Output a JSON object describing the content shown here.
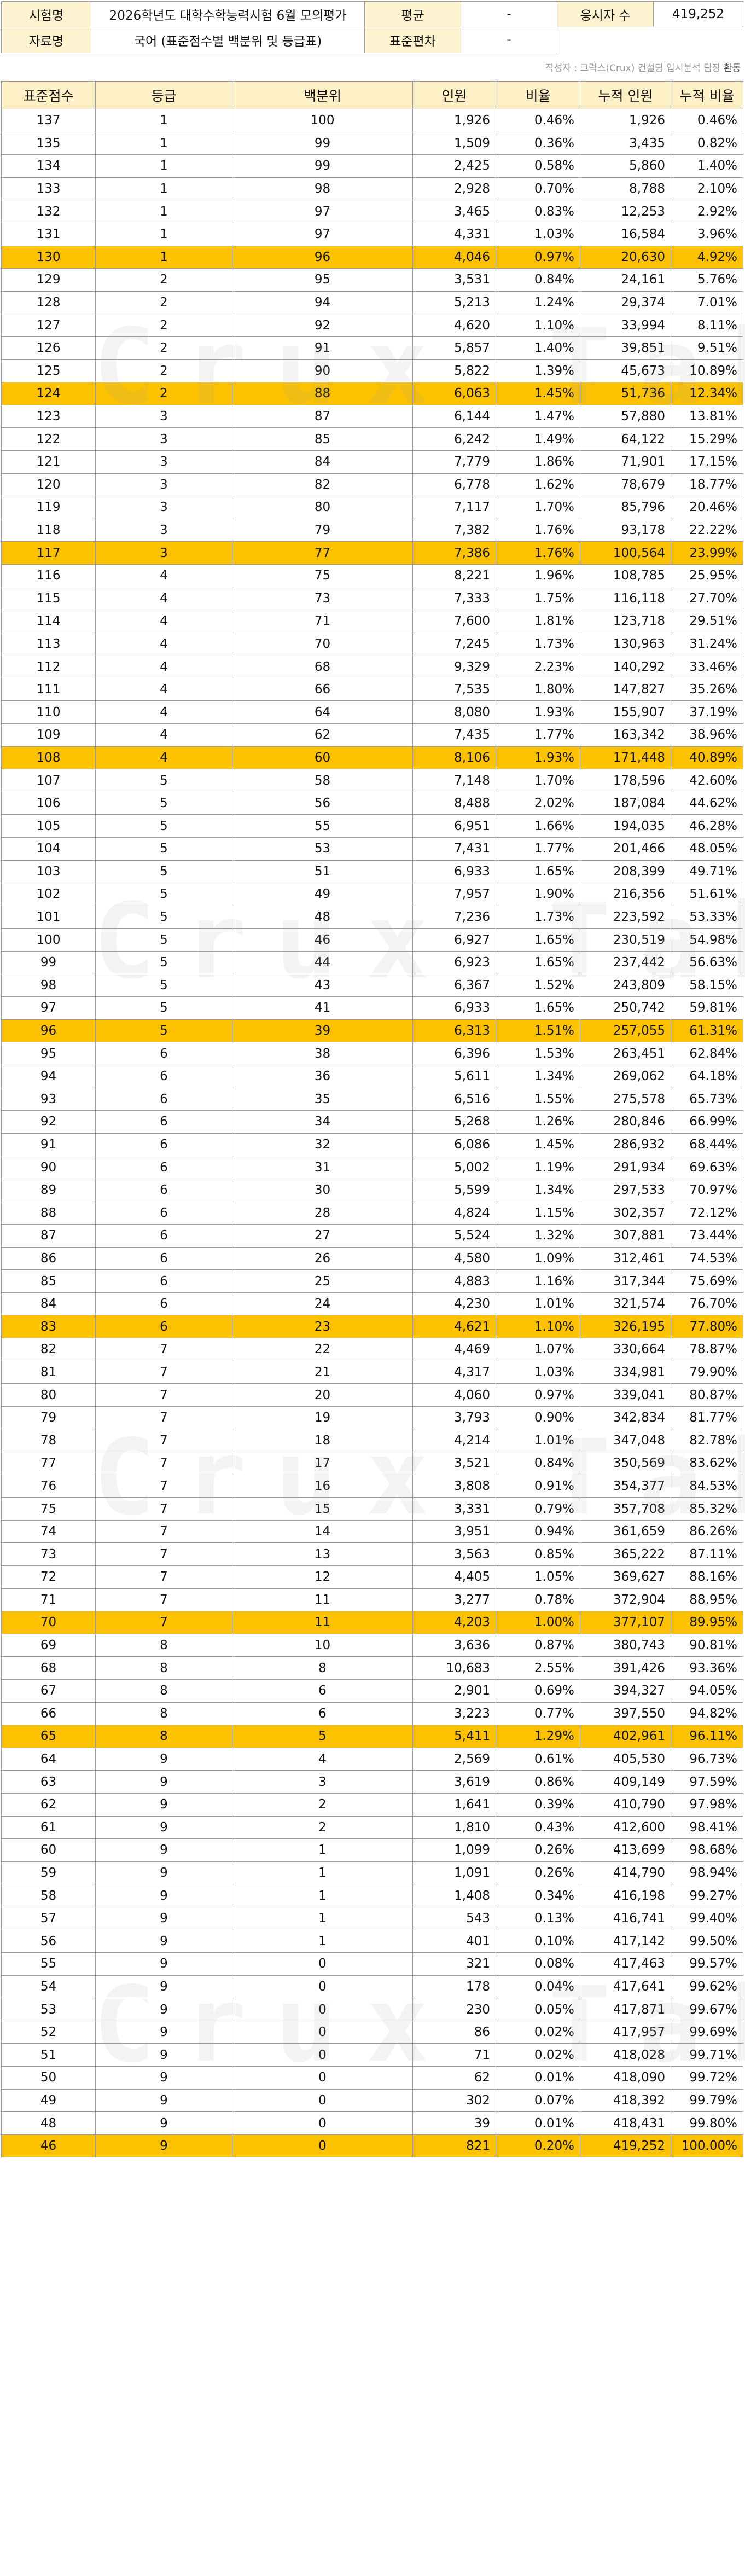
{
  "info": {
    "exam_type_label": "시험명",
    "exam_type_value": "2026학년도 대학수학능력시험 6월 모의평가",
    "data_label": "자료명",
    "data_value": "국어 (표준점수별 백분위 및 등급표)",
    "avg_label": "평균",
    "avg_value": "-",
    "std_label": "표준편차",
    "std_value": "-",
    "examinees_label": "응시자 수",
    "examinees_value": "419,252"
  },
  "credit": {
    "prefix": "작성자 : 크럭스(Crux) 컨설팅 입시분석 팀장",
    "name": "환동"
  },
  "watermark": "Crux Table",
  "table": {
    "headers": [
      "표준점수",
      "등급",
      "백분위",
      "인원",
      "비율",
      "누적 인원",
      "누적 비율"
    ],
    "rows": [
      [
        "137",
        "1",
        "100",
        "1,926",
        "0.46%",
        "1,926",
        "0.46%",
        false
      ],
      [
        "135",
        "1",
        "99",
        "1,509",
        "0.36%",
        "3,435",
        "0.82%",
        false
      ],
      [
        "134",
        "1",
        "99",
        "2,425",
        "0.58%",
        "5,860",
        "1.40%",
        false
      ],
      [
        "133",
        "1",
        "98",
        "2,928",
        "0.70%",
        "8,788",
        "2.10%",
        false
      ],
      [
        "132",
        "1",
        "97",
        "3,465",
        "0.83%",
        "12,253",
        "2.92%",
        false
      ],
      [
        "131",
        "1",
        "97",
        "4,331",
        "1.03%",
        "16,584",
        "3.96%",
        false
      ],
      [
        "130",
        "1",
        "96",
        "4,046",
        "0.97%",
        "20,630",
        "4.92%",
        true
      ],
      [
        "129",
        "2",
        "95",
        "3,531",
        "0.84%",
        "24,161",
        "5.76%",
        false
      ],
      [
        "128",
        "2",
        "94",
        "5,213",
        "1.24%",
        "29,374",
        "7.01%",
        false
      ],
      [
        "127",
        "2",
        "92",
        "4,620",
        "1.10%",
        "33,994",
        "8.11%",
        false
      ],
      [
        "126",
        "2",
        "91",
        "5,857",
        "1.40%",
        "39,851",
        "9.51%",
        false
      ],
      [
        "125",
        "2",
        "90",
        "5,822",
        "1.39%",
        "45,673",
        "10.89%",
        false
      ],
      [
        "124",
        "2",
        "88",
        "6,063",
        "1.45%",
        "51,736",
        "12.34%",
        true
      ],
      [
        "123",
        "3",
        "87",
        "6,144",
        "1.47%",
        "57,880",
        "13.81%",
        false
      ],
      [
        "122",
        "3",
        "85",
        "6,242",
        "1.49%",
        "64,122",
        "15.29%",
        false
      ],
      [
        "121",
        "3",
        "84",
        "7,779",
        "1.86%",
        "71,901",
        "17.15%",
        false
      ],
      [
        "120",
        "3",
        "82",
        "6,778",
        "1.62%",
        "78,679",
        "18.77%",
        false
      ],
      [
        "119",
        "3",
        "80",
        "7,117",
        "1.70%",
        "85,796",
        "20.46%",
        false
      ],
      [
        "118",
        "3",
        "79",
        "7,382",
        "1.76%",
        "93,178",
        "22.22%",
        false
      ],
      [
        "117",
        "3",
        "77",
        "7,386",
        "1.76%",
        "100,564",
        "23.99%",
        true
      ],
      [
        "116",
        "4",
        "75",
        "8,221",
        "1.96%",
        "108,785",
        "25.95%",
        false
      ],
      [
        "115",
        "4",
        "73",
        "7,333",
        "1.75%",
        "116,118",
        "27.70%",
        false
      ],
      [
        "114",
        "4",
        "71",
        "7,600",
        "1.81%",
        "123,718",
        "29.51%",
        false
      ],
      [
        "113",
        "4",
        "70",
        "7,245",
        "1.73%",
        "130,963",
        "31.24%",
        false
      ],
      [
        "112",
        "4",
        "68",
        "9,329",
        "2.23%",
        "140,292",
        "33.46%",
        false
      ],
      [
        "111",
        "4",
        "66",
        "7,535",
        "1.80%",
        "147,827",
        "35.26%",
        false
      ],
      [
        "110",
        "4",
        "64",
        "8,080",
        "1.93%",
        "155,907",
        "37.19%",
        false
      ],
      [
        "109",
        "4",
        "62",
        "7,435",
        "1.77%",
        "163,342",
        "38.96%",
        false
      ],
      [
        "108",
        "4",
        "60",
        "8,106",
        "1.93%",
        "171,448",
        "40.89%",
        true
      ],
      [
        "107",
        "5",
        "58",
        "7,148",
        "1.70%",
        "178,596",
        "42.60%",
        false
      ],
      [
        "106",
        "5",
        "56",
        "8,488",
        "2.02%",
        "187,084",
        "44.62%",
        false
      ],
      [
        "105",
        "5",
        "55",
        "6,951",
        "1.66%",
        "194,035",
        "46.28%",
        false
      ],
      [
        "104",
        "5",
        "53",
        "7,431",
        "1.77%",
        "201,466",
        "48.05%",
        false
      ],
      [
        "103",
        "5",
        "51",
        "6,933",
        "1.65%",
        "208,399",
        "49.71%",
        false
      ],
      [
        "102",
        "5",
        "49",
        "7,957",
        "1.90%",
        "216,356",
        "51.61%",
        false
      ],
      [
        "101",
        "5",
        "48",
        "7,236",
        "1.73%",
        "223,592",
        "53.33%",
        false
      ],
      [
        "100",
        "5",
        "46",
        "6,927",
        "1.65%",
        "230,519",
        "54.98%",
        false
      ],
      [
        "99",
        "5",
        "44",
        "6,923",
        "1.65%",
        "237,442",
        "56.63%",
        false
      ],
      [
        "98",
        "5",
        "43",
        "6,367",
        "1.52%",
        "243,809",
        "58.15%",
        false
      ],
      [
        "97",
        "5",
        "41",
        "6,933",
        "1.65%",
        "250,742",
        "59.81%",
        false
      ],
      [
        "96",
        "5",
        "39",
        "6,313",
        "1.51%",
        "257,055",
        "61.31%",
        true
      ],
      [
        "95",
        "6",
        "38",
        "6,396",
        "1.53%",
        "263,451",
        "62.84%",
        false
      ],
      [
        "94",
        "6",
        "36",
        "5,611",
        "1.34%",
        "269,062",
        "64.18%",
        false
      ],
      [
        "93",
        "6",
        "35",
        "6,516",
        "1.55%",
        "275,578",
        "65.73%",
        false
      ],
      [
        "92",
        "6",
        "34",
        "5,268",
        "1.26%",
        "280,846",
        "66.99%",
        false
      ],
      [
        "91",
        "6",
        "32",
        "6,086",
        "1.45%",
        "286,932",
        "68.44%",
        false
      ],
      [
        "90",
        "6",
        "31",
        "5,002",
        "1.19%",
        "291,934",
        "69.63%",
        false
      ],
      [
        "89",
        "6",
        "30",
        "5,599",
        "1.34%",
        "297,533",
        "70.97%",
        false
      ],
      [
        "88",
        "6",
        "28",
        "4,824",
        "1.15%",
        "302,357",
        "72.12%",
        false
      ],
      [
        "87",
        "6",
        "27",
        "5,524",
        "1.32%",
        "307,881",
        "73.44%",
        false
      ],
      [
        "86",
        "6",
        "26",
        "4,580",
        "1.09%",
        "312,461",
        "74.53%",
        false
      ],
      [
        "85",
        "6",
        "25",
        "4,883",
        "1.16%",
        "317,344",
        "75.69%",
        false
      ],
      [
        "84",
        "6",
        "24",
        "4,230",
        "1.01%",
        "321,574",
        "76.70%",
        false
      ],
      [
        "83",
        "6",
        "23",
        "4,621",
        "1.10%",
        "326,195",
        "77.80%",
        true
      ],
      [
        "82",
        "7",
        "22",
        "4,469",
        "1.07%",
        "330,664",
        "78.87%",
        false
      ],
      [
        "81",
        "7",
        "21",
        "4,317",
        "1.03%",
        "334,981",
        "79.90%",
        false
      ],
      [
        "80",
        "7",
        "20",
        "4,060",
        "0.97%",
        "339,041",
        "80.87%",
        false
      ],
      [
        "79",
        "7",
        "19",
        "3,793",
        "0.90%",
        "342,834",
        "81.77%",
        false
      ],
      [
        "78",
        "7",
        "18",
        "4,214",
        "1.01%",
        "347,048",
        "82.78%",
        false
      ],
      [
        "77",
        "7",
        "17",
        "3,521",
        "0.84%",
        "350,569",
        "83.62%",
        false
      ],
      [
        "76",
        "7",
        "16",
        "3,808",
        "0.91%",
        "354,377",
        "84.53%",
        false
      ],
      [
        "75",
        "7",
        "15",
        "3,331",
        "0.79%",
        "357,708",
        "85.32%",
        false
      ],
      [
        "74",
        "7",
        "14",
        "3,951",
        "0.94%",
        "361,659",
        "86.26%",
        false
      ],
      [
        "73",
        "7",
        "13",
        "3,563",
        "0.85%",
        "365,222",
        "87.11%",
        false
      ],
      [
        "72",
        "7",
        "12",
        "4,405",
        "1.05%",
        "369,627",
        "88.16%",
        false
      ],
      [
        "71",
        "7",
        "11",
        "3,277",
        "0.78%",
        "372,904",
        "88.95%",
        false
      ],
      [
        "70",
        "7",
        "11",
        "4,203",
        "1.00%",
        "377,107",
        "89.95%",
        true
      ],
      [
        "69",
        "8",
        "10",
        "3,636",
        "0.87%",
        "380,743",
        "90.81%",
        false
      ],
      [
        "68",
        "8",
        "8",
        "10,683",
        "2.55%",
        "391,426",
        "93.36%",
        false
      ],
      [
        "67",
        "8",
        "6",
        "2,901",
        "0.69%",
        "394,327",
        "94.05%",
        false
      ],
      [
        "66",
        "8",
        "6",
        "3,223",
        "0.77%",
        "397,550",
        "94.82%",
        false
      ],
      [
        "65",
        "8",
        "5",
        "5,411",
        "1.29%",
        "402,961",
        "96.11%",
        true
      ],
      [
        "64",
        "9",
        "4",
        "2,569",
        "0.61%",
        "405,530",
        "96.73%",
        false
      ],
      [
        "63",
        "9",
        "3",
        "3,619",
        "0.86%",
        "409,149",
        "97.59%",
        false
      ],
      [
        "62",
        "9",
        "2",
        "1,641",
        "0.39%",
        "410,790",
        "97.98%",
        false
      ],
      [
        "61",
        "9",
        "2",
        "1,810",
        "0.43%",
        "412,600",
        "98.41%",
        false
      ],
      [
        "60",
        "9",
        "1",
        "1,099",
        "0.26%",
        "413,699",
        "98.68%",
        false
      ],
      [
        "59",
        "9",
        "1",
        "1,091",
        "0.26%",
        "414,790",
        "98.94%",
        false
      ],
      [
        "58",
        "9",
        "1",
        "1,408",
        "0.34%",
        "416,198",
        "99.27%",
        false
      ],
      [
        "57",
        "9",
        "1",
        "543",
        "0.13%",
        "416,741",
        "99.40%",
        false
      ],
      [
        "56",
        "9",
        "1",
        "401",
        "0.10%",
        "417,142",
        "99.50%",
        false
      ],
      [
        "55",
        "9",
        "0",
        "321",
        "0.08%",
        "417,463",
        "99.57%",
        false
      ],
      [
        "54",
        "9",
        "0",
        "178",
        "0.04%",
        "417,641",
        "99.62%",
        false
      ],
      [
        "53",
        "9",
        "0",
        "230",
        "0.05%",
        "417,871",
        "99.67%",
        false
      ],
      [
        "52",
        "9",
        "0",
        "86",
        "0.02%",
        "417,957",
        "99.69%",
        false
      ],
      [
        "51",
        "9",
        "0",
        "71",
        "0.02%",
        "418,028",
        "99.71%",
        false
      ],
      [
        "50",
        "9",
        "0",
        "62",
        "0.01%",
        "418,090",
        "99.72%",
        false
      ],
      [
        "49",
        "9",
        "0",
        "302",
        "0.07%",
        "418,392",
        "99.79%",
        false
      ],
      [
        "48",
        "9",
        "0",
        "39",
        "0.01%",
        "418,431",
        "99.80%",
        false
      ],
      [
        "46",
        "9",
        "0",
        "821",
        "0.20%",
        "419,252",
        "100.00%",
        true
      ]
    ]
  }
}
